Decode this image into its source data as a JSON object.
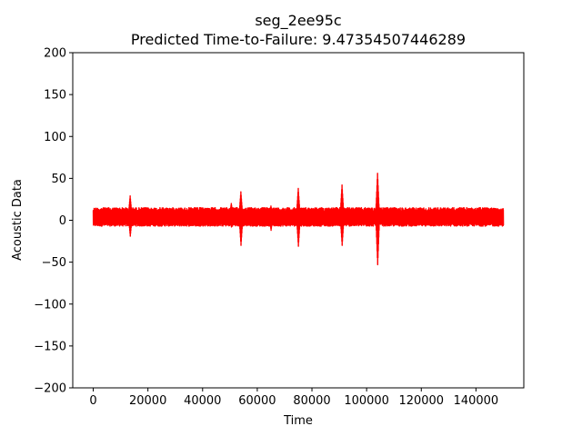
{
  "chart_data": {
    "type": "line",
    "title": "seg_2ee95c",
    "subtitle": "Predicted Time-to-Failure: 9.47354507446289",
    "xlabel": "Time",
    "ylabel": "Acoustic Data",
    "xlim": [
      -7500,
      157500
    ],
    "ylim": [
      -200,
      200
    ],
    "xticks": [
      0,
      20000,
      40000,
      60000,
      80000,
      100000,
      120000,
      140000
    ],
    "xtick_labels": [
      "0",
      "20000",
      "40000",
      "60000",
      "80000",
      "100000",
      "120000",
      "140000"
    ],
    "yticks": [
      -200,
      -150,
      -100,
      -50,
      0,
      50,
      100,
      150,
      200
    ],
    "ytick_labels": [
      "−200",
      "−150",
      "−100",
      "−50",
      "0",
      "50",
      "100",
      "150",
      "200"
    ],
    "grid": false,
    "series": [
      {
        "name": "acoustic_data",
        "color": "#ff0000",
        "x_range": [
          0,
          150000
        ],
        "baseline": 4.5,
        "noise_envelope": [
          -7,
          15
        ],
        "events": [
          {
            "x": 13500,
            "max": 29,
            "min": -19
          },
          {
            "x": 50500,
            "max": 20,
            "min": -8
          },
          {
            "x": 54000,
            "max": 34,
            "min": -30
          },
          {
            "x": 65000,
            "max": 17,
            "min": -12
          },
          {
            "x": 75000,
            "max": 38,
            "min": -31
          },
          {
            "x": 91000,
            "max": 42,
            "min": -30
          },
          {
            "x": 104000,
            "max": 56,
            "min": -53
          }
        ]
      }
    ]
  }
}
